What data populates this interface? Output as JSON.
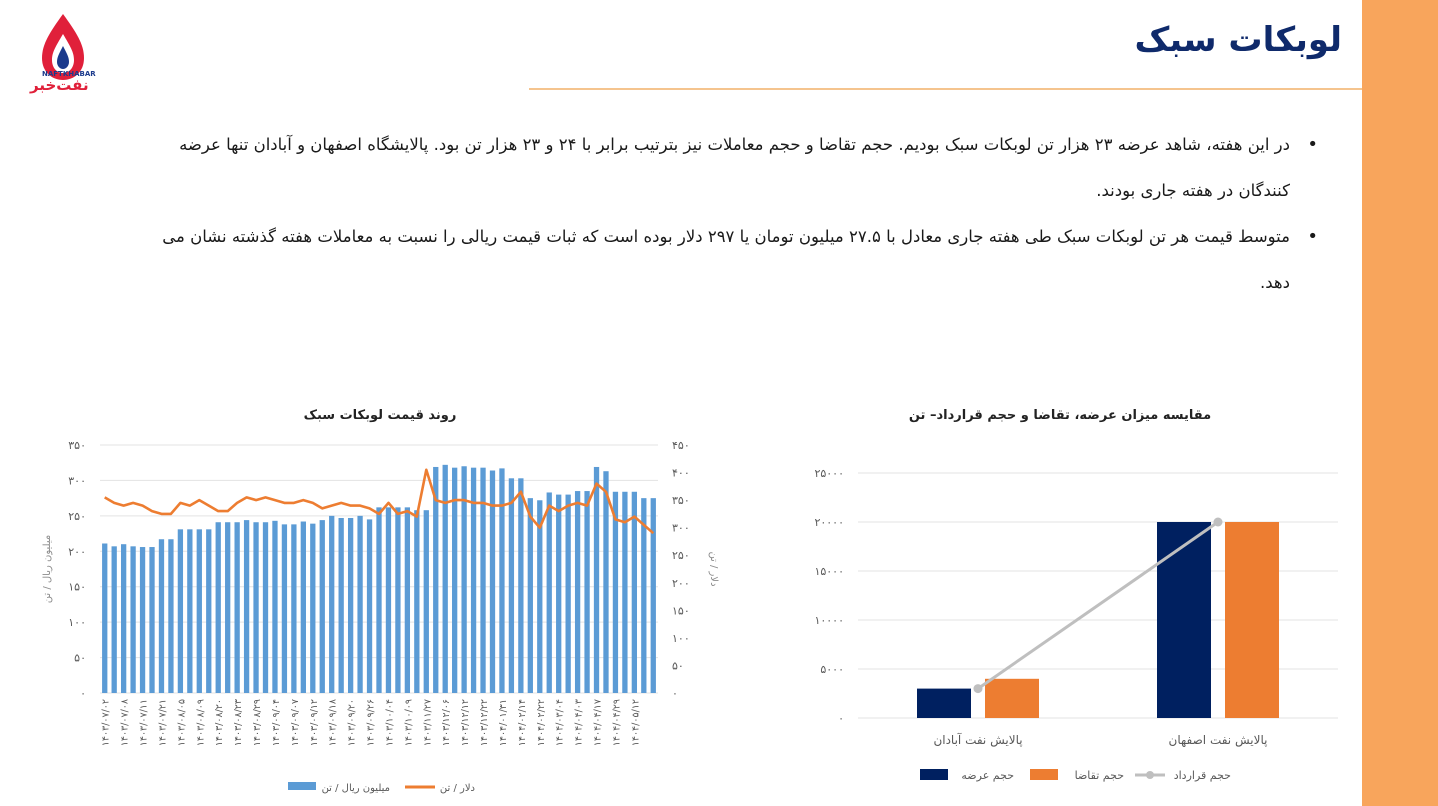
{
  "header": {
    "title": "لوبکات سبک"
  },
  "logo": {
    "name_en": "NAFTKHABAR",
    "name_fa": "نفت‌خبر"
  },
  "bullets": [
    "در این هفته، شاهد عرضه ۲۳ هزار تن لوبکات سبک بودیم. حجم تقاضا و حجم معاملات نیز بترتیب برابر با ۲۴ و ۲۳ هزار تن بود. پالایشگاه اصفهان و آبادان تنها عرضه کنندگان در هفته جاری بودند.",
    "متوسط قیمت هر تن لوبکات سبک طی هفته جاری معادل با ۲۷.۵ میلیون تومان یا ۲۹۷ دلار بوده است که ثبات قیمت ریالی را نسبت به معاملات هفته گذشته نشان می دهد."
  ],
  "colors": {
    "accent": "#f8a55c",
    "title": "#0f2a6b",
    "bar_blue": "#5b9bd5",
    "line_orange": "#ed7d31",
    "navy": "#002060",
    "gray_line": "#bfbfbf"
  },
  "chart_data": [
    {
      "type": "bar",
      "title": "مقایسه میزان عرضه، تقاضا و حجم قرارداد– تن",
      "categories": [
        "پالایش نفت آبادان",
        "پالایش نفت اصفهان"
      ],
      "series": [
        {
          "name": "حجم عرضه",
          "kind": "bar",
          "color": "#002060",
          "values": [
            3000,
            20000
          ]
        },
        {
          "name": "حجم تقاضا",
          "kind": "bar",
          "color": "#ed7d31",
          "values": [
            4000,
            20000
          ]
        },
        {
          "name": "حجم قرارداد",
          "kind": "line",
          "color": "#bfbfbf",
          "values": [
            3000,
            20000
          ]
        }
      ],
      "ylim": [
        0,
        25000
      ],
      "yticks": [
        "۰",
        "۵۰۰۰",
        "۱۰۰۰۰",
        "۱۵۰۰۰",
        "۲۰۰۰۰",
        "۲۵۰۰۰"
      ],
      "legend": "bottom"
    },
    {
      "type": "bar",
      "title": "روند قیمت لوبکات سبک",
      "ylabel": "میلیون ریال / تن",
      "y2label": "دلار / تن",
      "ylim": [
        0,
        350
      ],
      "y2lim": [
        0,
        450
      ],
      "yticks": [
        "۰",
        "۵۰",
        "۱۰۰",
        "۱۵۰",
        "۲۰۰",
        "۲۵۰",
        "۳۰۰",
        "۳۵۰"
      ],
      "y2ticks": [
        "۰",
        "۵۰",
        "۱۰۰",
        "۱۵۰",
        "۲۰۰",
        "۲۵۰",
        "۳۰۰",
        "۳۵۰",
        "۴۰۰",
        "۴۵۰"
      ],
      "x_tick_labels": [
        "۱۴۰۳/۰۷/۰۲",
        "۱۴۰۳/۰۷/۰۸",
        "۱۴۰۳/۰۷/۱۱",
        "۱۴۰۳/۰۷/۲۱",
        "۱۴۰۳/۰۸/۰۵",
        "۱۴۰۳/۰۸/۰۹",
        "۱۴۰۳/۰۸/۲۰",
        "۱۴۰۳/۰۸/۲۳",
        "۱۴۰۳/۰۸/۲۹",
        "۱۴۰۳/۰۹/۰۴",
        "۱۴۰۳/۰۹/۰۷",
        "۱۴۰۳/۰۹/۱۲",
        "۱۴۰۳/۰۹/۱۸",
        "۱۴۰۳/۰۹/۲۰",
        "۱۴۰۳/۰۹/۲۶",
        "۱۴۰۳/۱۰/۰۴",
        "۱۴۰۳/۱۰/۰۹",
        "۱۴۰۳/۱۱/۲۷",
        "۱۴۰۳/۱۲/۰۶",
        "۱۴۰۳/۱۲/۱۲",
        "۱۴۰۳/۱۲/۲۲",
        "۱۴۰۴/۰۱/۳۱",
        "۱۴۰۴/۰۲/۱۴",
        "۱۴۰۴/۰۲/۲۲",
        "۱۴۰۴/۰۳/۰۴",
        "۱۴۰۴/۰۴/۰۳",
        "۱۴۰۴/۰۴/۱۷",
        "۱۴۰۴/۰۴/۲۹",
        "۱۴۰۴/۰۵/۱۲"
      ],
      "series": [
        {
          "name": "میلیون ریال / تن",
          "kind": "bar",
          "axis": "left",
          "color": "#5b9bd5",
          "values": [
            211,
            207,
            210,
            207,
            206,
            206,
            217,
            217,
            231,
            231,
            231,
            231,
            241,
            241,
            241,
            244,
            241,
            241,
            243,
            238,
            238,
            242,
            239,
            244,
            250,
            247,
            247,
            250,
            245,
            262,
            262,
            262,
            262,
            258,
            258,
            319,
            322,
            318,
            320,
            318,
            318,
            314,
            317,
            303,
            303,
            275,
            272,
            283,
            280,
            280,
            285,
            285,
            319,
            313,
            284,
            284,
            284,
            275,
            275
          ],
          "x_tick_every": 2
        },
        {
          "name": "دلار / تن",
          "kind": "line",
          "axis": "right",
          "color": "#ed7d31",
          "values": [
            355,
            345,
            340,
            345,
            340,
            330,
            325,
            325,
            345,
            340,
            350,
            340,
            330,
            330,
            345,
            355,
            350,
            355,
            350,
            345,
            345,
            350,
            345,
            335,
            340,
            345,
            340,
            340,
            335,
            325,
            345,
            325,
            330,
            320,
            405,
            350,
            345,
            350,
            350,
            345,
            345,
            340,
            340,
            345,
            365,
            320,
            300,
            340,
            330,
            340,
            345,
            340,
            380,
            365,
            315,
            310,
            320,
            305,
            290
          ]
        }
      ],
      "legend": "bottom"
    }
  ]
}
